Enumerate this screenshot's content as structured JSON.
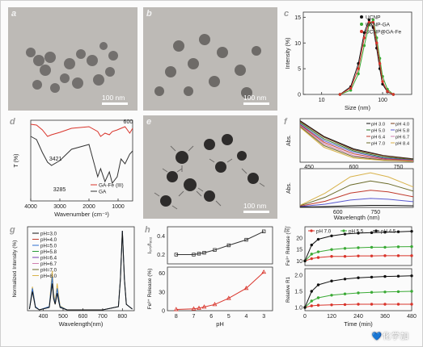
{
  "panels": {
    "a": {
      "label": "a",
      "scale": "100 nm"
    },
    "b": {
      "label": "b",
      "scale": "100 nm"
    },
    "c": {
      "label": "c",
      "xlabel": "Size (nm)",
      "ylabel": "Intensity (%)",
      "xticks": [
        "10",
        "100"
      ],
      "yticks": [
        "0",
        "5",
        "10",
        "15"
      ],
      "legend": [
        "UCNP",
        "UCNP-GA",
        "UCNP@GA-Fe"
      ],
      "colors": [
        "#111111",
        "#3aaa35",
        "#d9342b"
      ]
    },
    "d": {
      "label": "d",
      "xlabel": "Wavenumber (cm⁻¹)",
      "ylabel": "T (%)",
      "xticks": [
        "4000",
        "3000",
        "2000",
        "1000"
      ],
      "annotations": [
        "600",
        "3421",
        "3285"
      ],
      "legend": [
        "GA-Fe (III)",
        "GA"
      ],
      "colors": [
        "#d9342b",
        "#333333"
      ]
    },
    "e": {
      "label": "e",
      "scale": "100 nm"
    },
    "f": {
      "label": "f",
      "ylabel_top": "Abs.",
      "ylabel_bottom": "Abs.",
      "xlabel": "Wavelength (nm)",
      "xticks_top": [
        "450",
        "600",
        "750"
      ],
      "xticks_bottom": [
        "600",
        "750"
      ],
      "legend": [
        "pH 3.0",
        "pH 4.0",
        "pH 5.0",
        "pH 5.8",
        "pH 6.4",
        "pH 6.7",
        "pH 7.0",
        "pH 8.4"
      ],
      "colors": [
        "#111111",
        "#7a3b1a",
        "#2a7a2a",
        "#5a5ad0",
        "#c0392b",
        "#d07fb0",
        "#6a6a2a",
        "#d8b24a"
      ]
    },
    "g": {
      "label": "g",
      "xlabel": "Wavelength(nm)",
      "ylabel": "Normalized Intensity (%)",
      "xticks": [
        "400",
        "500",
        "600",
        "700",
        "800"
      ],
      "legend": [
        "pH=3.0",
        "pH=4.0",
        "pH=5.0",
        "pH=5.8",
        "pH=6.4",
        "pH=6.7",
        "pH=7.0",
        "pH=8.0"
      ],
      "colors": [
        "#111111",
        "#c0392b",
        "#2d6fd0",
        "#2a9a3a",
        "#7a3bb0",
        "#d07fb0",
        "#6a6a2a",
        "#d8b24a"
      ]
    },
    "h": {
      "label": "h",
      "xlabel": "pH",
      "ylabel_top": "I₅₇₅/I₈₀₂",
      "ylabel_bottom": "Fe³⁺ Release (%)",
      "xticks": [
        "8",
        "7",
        "6",
        "5",
        "4",
        "3"
      ],
      "yticks_top": [
        "0.2",
        "0.4"
      ],
      "yticks_bottom": [
        "0",
        "30",
        "60"
      ]
    },
    "i": {
      "label": "i",
      "xlabel": "Time (min)",
      "ylabel_top": "Fe³⁺ Release (%)",
      "ylabel_bottom": "Relative R1",
      "xticks": [
        "0",
        "120",
        "240",
        "360",
        "480"
      ],
      "yticks_top": [
        "10",
        "15",
        "20"
      ],
      "yticks_bottom": [
        "1.0",
        "1.5",
        "2.0"
      ],
      "legend": [
        "pH 7.0",
        "pH 5.5",
        "pH 4.5"
      ],
      "colors": [
        "#d9342b",
        "#3aaa35",
        "#111111"
      ]
    }
  },
  "chart_data": [
    {
      "type": "line",
      "title": "c",
      "xlabel": "Size (nm)",
      "ylabel": "Intensity (%)",
      "xscale": "log",
      "xlim": [
        5,
        300
      ],
      "ylim": [
        0,
        16
      ],
      "x": [
        20,
        30,
        40,
        50,
        60,
        70,
        80,
        90,
        100,
        120,
        150
      ],
      "series": [
        {
          "name": "UCNP",
          "values": [
            0,
            1.5,
            6,
            12,
            14.5,
            13,
            9,
            5,
            2,
            0.5,
            0
          ]
        },
        {
          "name": "UCNP-GA",
          "values": [
            0,
            0.8,
            4,
            9.5,
            13.5,
            14.5,
            11,
            7,
            3.5,
            1,
            0
          ]
        },
        {
          "name": "UCNP@GA-Fe",
          "values": [
            0,
            1.2,
            5,
            11,
            14,
            14,
            10,
            6,
            2.5,
            0.6,
            0
          ]
        }
      ]
    },
    {
      "type": "line",
      "title": "d",
      "xlabel": "Wavenumber (cm⁻¹)",
      "ylabel": "T (%)",
      "xlim": [
        4000,
        500
      ],
      "x": [
        4000,
        3800,
        3600,
        3421,
        3285,
        3000,
        2600,
        2000,
        1700,
        1600,
        1450,
        1300,
        1200,
        1030,
        900,
        760,
        600,
        500
      ],
      "series": [
        {
          "name": "GA-Fe (III)",
          "values": [
            95,
            94,
            88,
            80,
            82,
            85,
            90,
            92,
            86,
            80,
            84,
            82,
            86,
            88,
            90,
            92,
            84,
            90
          ]
        },
        {
          "name": "GA",
          "values": [
            80,
            76,
            60,
            48,
            44,
            50,
            64,
            70,
            30,
            40,
            24,
            36,
            22,
            30,
            52,
            46,
            58,
            62
          ]
        }
      ]
    },
    {
      "type": "line",
      "title": "f-top",
      "ylabel": "Abs.",
      "xlim": [
        420,
        800
      ],
      "x": [
        420,
        500,
        600,
        700,
        800
      ],
      "series": [
        {
          "name": "pH 3.0",
          "values": [
            1.0,
            0.62,
            0.32,
            0.16,
            0.08
          ]
        },
        {
          "name": "pH 4.0",
          "values": [
            0.98,
            0.6,
            0.3,
            0.15,
            0.07
          ]
        },
        {
          "name": "pH 5.0",
          "values": [
            0.95,
            0.56,
            0.27,
            0.12,
            0.06
          ]
        },
        {
          "name": "pH 5.8",
          "values": [
            0.92,
            0.52,
            0.24,
            0.1,
            0.05
          ]
        },
        {
          "name": "pH 6.4",
          "values": [
            0.9,
            0.48,
            0.2,
            0.08,
            0.04
          ]
        },
        {
          "name": "pH 6.7",
          "values": [
            0.88,
            0.44,
            0.16,
            0.06,
            0.03
          ]
        },
        {
          "name": "pH 7.0",
          "values": [
            0.86,
            0.4,
            0.13,
            0.05,
            0.02
          ]
        },
        {
          "name": "pH 8.4",
          "values": [
            0.84,
            0.36,
            0.1,
            0.04,
            0.02
          ]
        }
      ]
    },
    {
      "type": "line",
      "title": "f-bottom",
      "xlabel": "Wavelength (nm)",
      "ylabel": "Abs.",
      "xlim": [
        450,
        900
      ],
      "x": [
        450,
        550,
        650,
        730,
        800,
        900
      ],
      "series": [
        {
          "name": "pH 8.4",
          "values": [
            0.05,
            0.35,
            0.75,
            0.85,
            0.75,
            0.5
          ]
        },
        {
          "name": "pH 7.0",
          "values": [
            0.04,
            0.25,
            0.55,
            0.65,
            0.58,
            0.4
          ]
        },
        {
          "name": "pH 6.4",
          "values": [
            0.03,
            0.15,
            0.35,
            0.42,
            0.38,
            0.26
          ]
        },
        {
          "name": "pH 5.8",
          "values": [
            0.02,
            0.08,
            0.18,
            0.22,
            0.2,
            0.14
          ]
        },
        {
          "name": "pH 3.0",
          "values": [
            0.01,
            0.02,
            0.04,
            0.05,
            0.05,
            0.04
          ]
        }
      ]
    },
    {
      "type": "line",
      "title": "g",
      "xlabel": "Wavelength(nm)",
      "ylabel": "Normalized Intensity (%)",
      "xlim": [
        320,
        860
      ],
      "ylim": [
        0,
        100
      ],
      "x": [
        330,
        345,
        360,
        380,
        430,
        445,
        452,
        460,
        470,
        476,
        485,
        520,
        700,
        780,
        790,
        800,
        810,
        820,
        850
      ],
      "series": [
        {
          "name": "pH=8.0",
          "values": [
            2,
            30,
            5,
            1,
            5,
            50,
            22,
            10,
            34,
            22,
            6,
            1,
            1,
            5,
            40,
            100,
            40,
            8,
            2
          ]
        },
        {
          "name": "pH=5.0",
          "values": [
            2,
            28,
            5,
            1,
            5,
            42,
            18,
            9,
            28,
            18,
            5,
            1,
            1,
            5,
            40,
            100,
            40,
            8,
            2
          ]
        },
        {
          "name": "pH=3.0",
          "values": [
            2,
            24,
            4,
            1,
            4,
            34,
            15,
            8,
            22,
            14,
            4,
            1,
            1,
            5,
            40,
            100,
            40,
            8,
            2
          ]
        }
      ]
    },
    {
      "type": "line",
      "title": "h-top",
      "xlabel": "pH",
      "ylabel": "I₅₇₅/I₈₀₂",
      "xlim": [
        8.5,
        2.5
      ],
      "ylim": [
        0.1,
        0.5
      ],
      "x": [
        8,
        7,
        6.7,
        6.4,
        5.8,
        5,
        4,
        3
      ],
      "series": [
        {
          "name": "ratio",
          "values": [
            0.2,
            0.2,
            0.21,
            0.22,
            0.25,
            0.3,
            0.36,
            0.45
          ]
        }
      ]
    },
    {
      "type": "line",
      "title": "h-bottom",
      "xlabel": "pH",
      "ylabel": "Fe³⁺ Release (%)",
      "xlim": [
        8.5,
        2.5
      ],
      "ylim": [
        0,
        70
      ],
      "x": [
        8,
        7,
        6.7,
        6.4,
        5.8,
        5,
        4,
        3
      ],
      "series": [
        {
          "name": "release",
          "values": [
            2,
            3,
            4,
            6,
            10,
            20,
            36,
            62
          ]
        }
      ]
    },
    {
      "type": "line",
      "title": "i-top",
      "xlabel": "Time (min)",
      "ylabel": "Fe³⁺ Release (%)",
      "xlim": [
        0,
        480
      ],
      "ylim": [
        8,
        25
      ],
      "x": [
        0,
        30,
        60,
        120,
        180,
        240,
        300,
        360,
        420,
        480
      ],
      "series": [
        {
          "name": "pH 7.0",
          "values": [
            10,
            11,
            11.5,
            12,
            12,
            12.2,
            12.2,
            12.3,
            12.3,
            12.3
          ]
        },
        {
          "name": "pH 5.5",
          "values": [
            10,
            13,
            14,
            15,
            15.5,
            15.8,
            16,
            16,
            16.2,
            16.3
          ]
        },
        {
          "name": "pH 4.5",
          "values": [
            10,
            17,
            19.5,
            21,
            21.8,
            22.2,
            22.4,
            22.6,
            22.8,
            23
          ]
        }
      ]
    },
    {
      "type": "line",
      "title": "i-bottom",
      "xlabel": "Time (min)",
      "ylabel": "Relative R1",
      "xlim": [
        0,
        480
      ],
      "ylim": [
        0.9,
        2.2
      ],
      "x": [
        0,
        30,
        60,
        120,
        180,
        240,
        300,
        360,
        420,
        480
      ],
      "series": [
        {
          "name": "pH 7.0",
          "values": [
            1.0,
            1.05,
            1.07,
            1.08,
            1.09,
            1.1,
            1.1,
            1.1,
            1.1,
            1.1
          ]
        },
        {
          "name": "pH 5.5",
          "values": [
            1.0,
            1.2,
            1.3,
            1.38,
            1.42,
            1.45,
            1.47,
            1.48,
            1.49,
            1.5
          ]
        },
        {
          "name": "pH 4.5",
          "values": [
            1.0,
            1.5,
            1.7,
            1.82,
            1.88,
            1.92,
            1.94,
            1.96,
            1.97,
            1.98
          ]
        }
      ]
    }
  ],
  "watermark": "💙化学加"
}
